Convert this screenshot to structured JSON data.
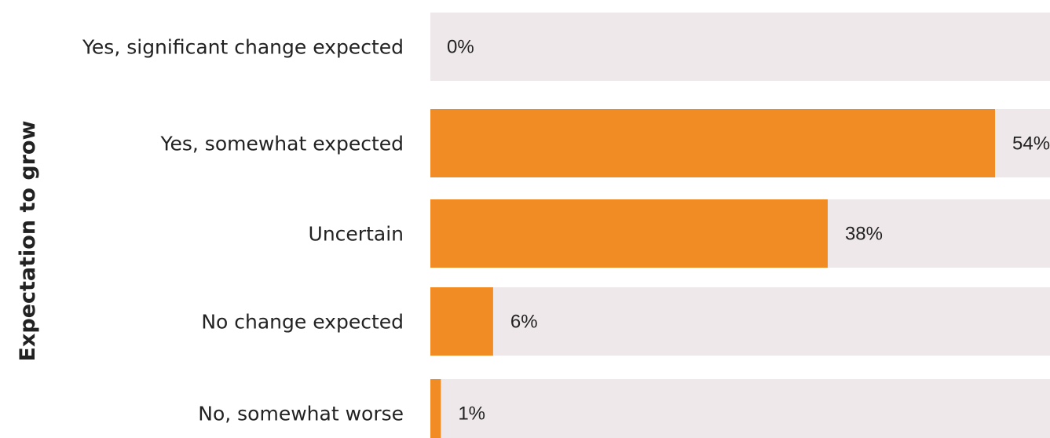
{
  "chart_data": {
    "type": "bar",
    "orientation": "horizontal",
    "ylabel": "Expectation to grow",
    "categories": [
      "Yes, significant change expected",
      "Yes, somewhat expected",
      "Uncertain",
      "No change expected",
      "No, somewhat worse"
    ],
    "values": [
      0,
      54,
      38,
      6,
      1
    ],
    "value_labels": [
      "0%",
      "54%",
      "38%",
      "6%",
      "1%"
    ],
    "xlim": [
      0,
      100
    ],
    "grid": false,
    "legend": "none"
  },
  "colors": {
    "bar": "#f08c23",
    "track": "#eee8ea",
    "text": "#222222"
  }
}
